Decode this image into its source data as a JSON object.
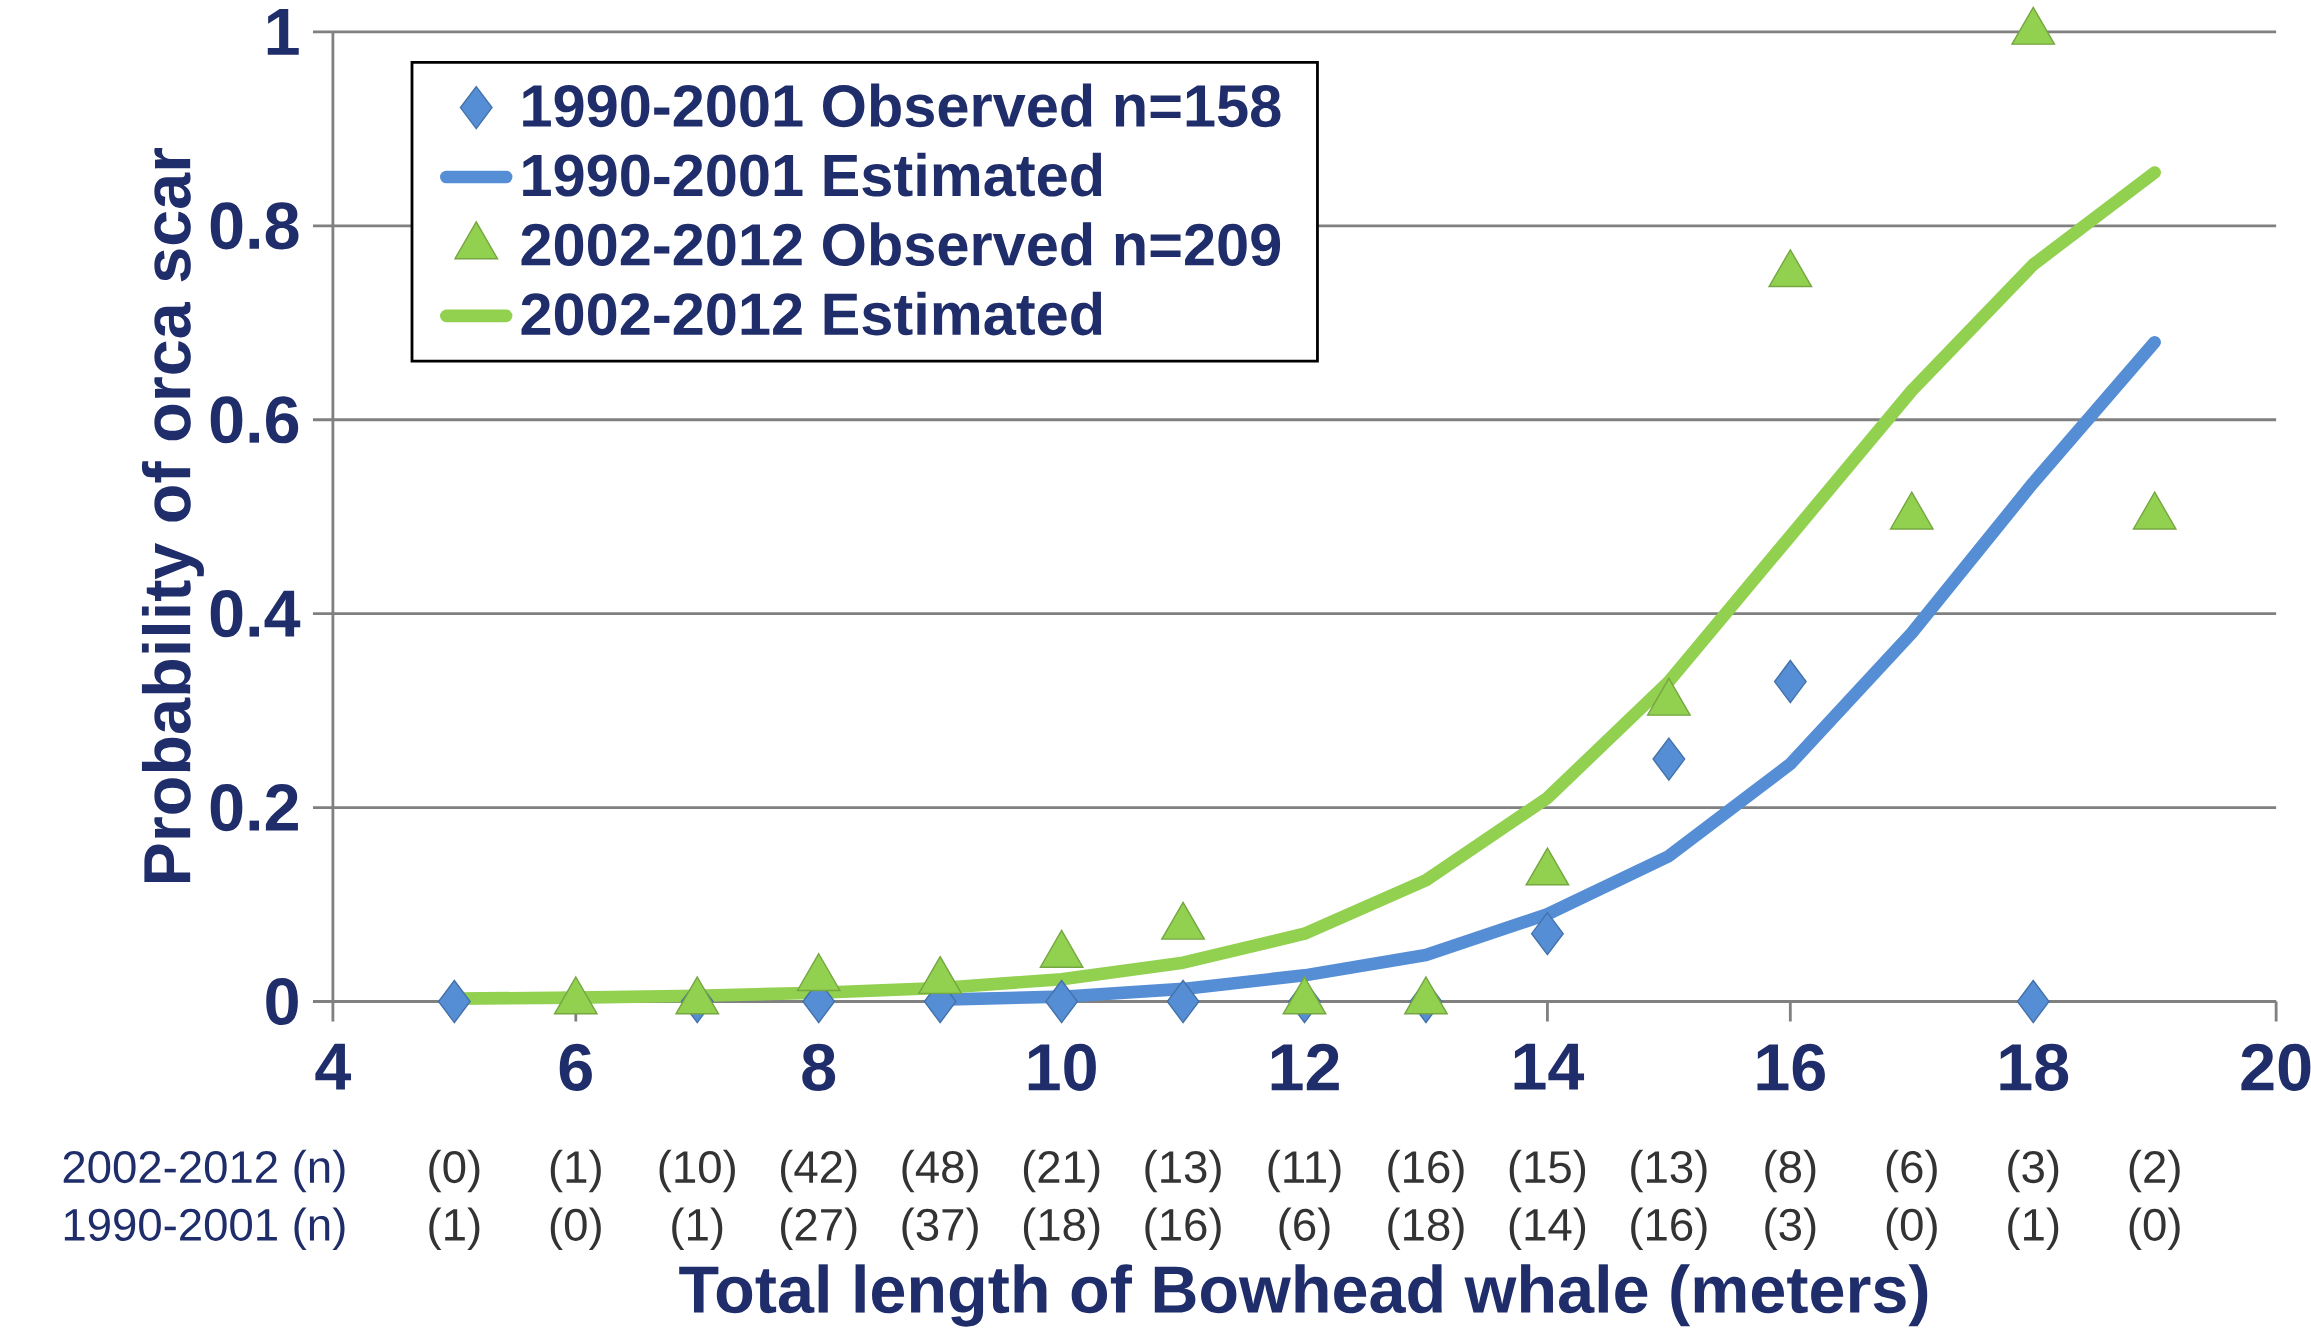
{
  "chart_data": {
    "type": "scatter",
    "xlabel": "Total length of Bowhead whale (meters)",
    "ylabel": "Probability of orca scar",
    "xlim": [
      4,
      20
    ],
    "xticks": [
      4,
      6,
      8,
      10,
      12,
      14,
      16,
      18,
      20
    ],
    "ylim": [
      0,
      1
    ],
    "yticks": [
      0,
      0.2,
      0.4,
      0.6,
      0.8,
      1
    ],
    "grid": "y",
    "legend": "top left",
    "series": [
      {
        "name": "1990-2001 Observed n=158",
        "marker": "diamond",
        "color": "#558ed5",
        "x": [
          5,
          7,
          8,
          9,
          10,
          11,
          12,
          13,
          14,
          15,
          16,
          18
        ],
        "values": [
          0,
          0,
          0,
          0,
          0,
          0,
          0,
          0,
          0.07,
          0.25,
          0.33,
          0
        ]
      },
      {
        "name": "1990-2001 Estimated",
        "type": "line",
        "color": "#558ed5",
        "x": [
          9,
          10,
          11,
          12,
          13,
          14,
          15,
          16,
          17,
          18,
          19
        ],
        "values": [
          0.002,
          0.005,
          0.013,
          0.027,
          0.048,
          0.09,
          0.15,
          0.245,
          0.38,
          0.535,
          0.68
        ]
      },
      {
        "name": "2002-2012 Observed n=209",
        "marker": "triangle",
        "color": "#92d050",
        "x": [
          6,
          7,
          8,
          9,
          10,
          11,
          12,
          13,
          14,
          15,
          16,
          17,
          18,
          19
        ],
        "values": [
          0,
          0,
          0.024,
          0.021,
          0.048,
          0.077,
          0,
          0,
          0.133,
          0.308,
          0.75,
          0.5,
          1,
          0.5
        ]
      },
      {
        "name": "2002-2012 Estimated",
        "type": "line",
        "color": "#92d050",
        "x": [
          5,
          6,
          7,
          8,
          9,
          10,
          11,
          12,
          13,
          14,
          15,
          16,
          17,
          18,
          19
        ],
        "values": [
          0.003,
          0.004,
          0.006,
          0.009,
          0.014,
          0.023,
          0.04,
          0.07,
          0.125,
          0.21,
          0.33,
          0.48,
          0.63,
          0.76,
          0.855
        ]
      }
    ],
    "annotations": [
      "2002-2012 (n)",
      "(0)",
      "(1)",
      "(10)",
      "(42)",
      "(48)",
      "(21)",
      "(13)",
      "(11)",
      "(16)",
      "(15)",
      "(13)",
      "(8)",
      "(6)",
      "(3)",
      "(2)",
      "1990-2001 (n)",
      "(1)",
      "(0)",
      "(1)",
      "(27)",
      "(37)",
      "(18)",
      "(16)",
      "(6)",
      "(18)",
      "(14)",
      "(16)",
      "(3)",
      "(0)",
      "(1)",
      "(0)"
    ]
  }
}
